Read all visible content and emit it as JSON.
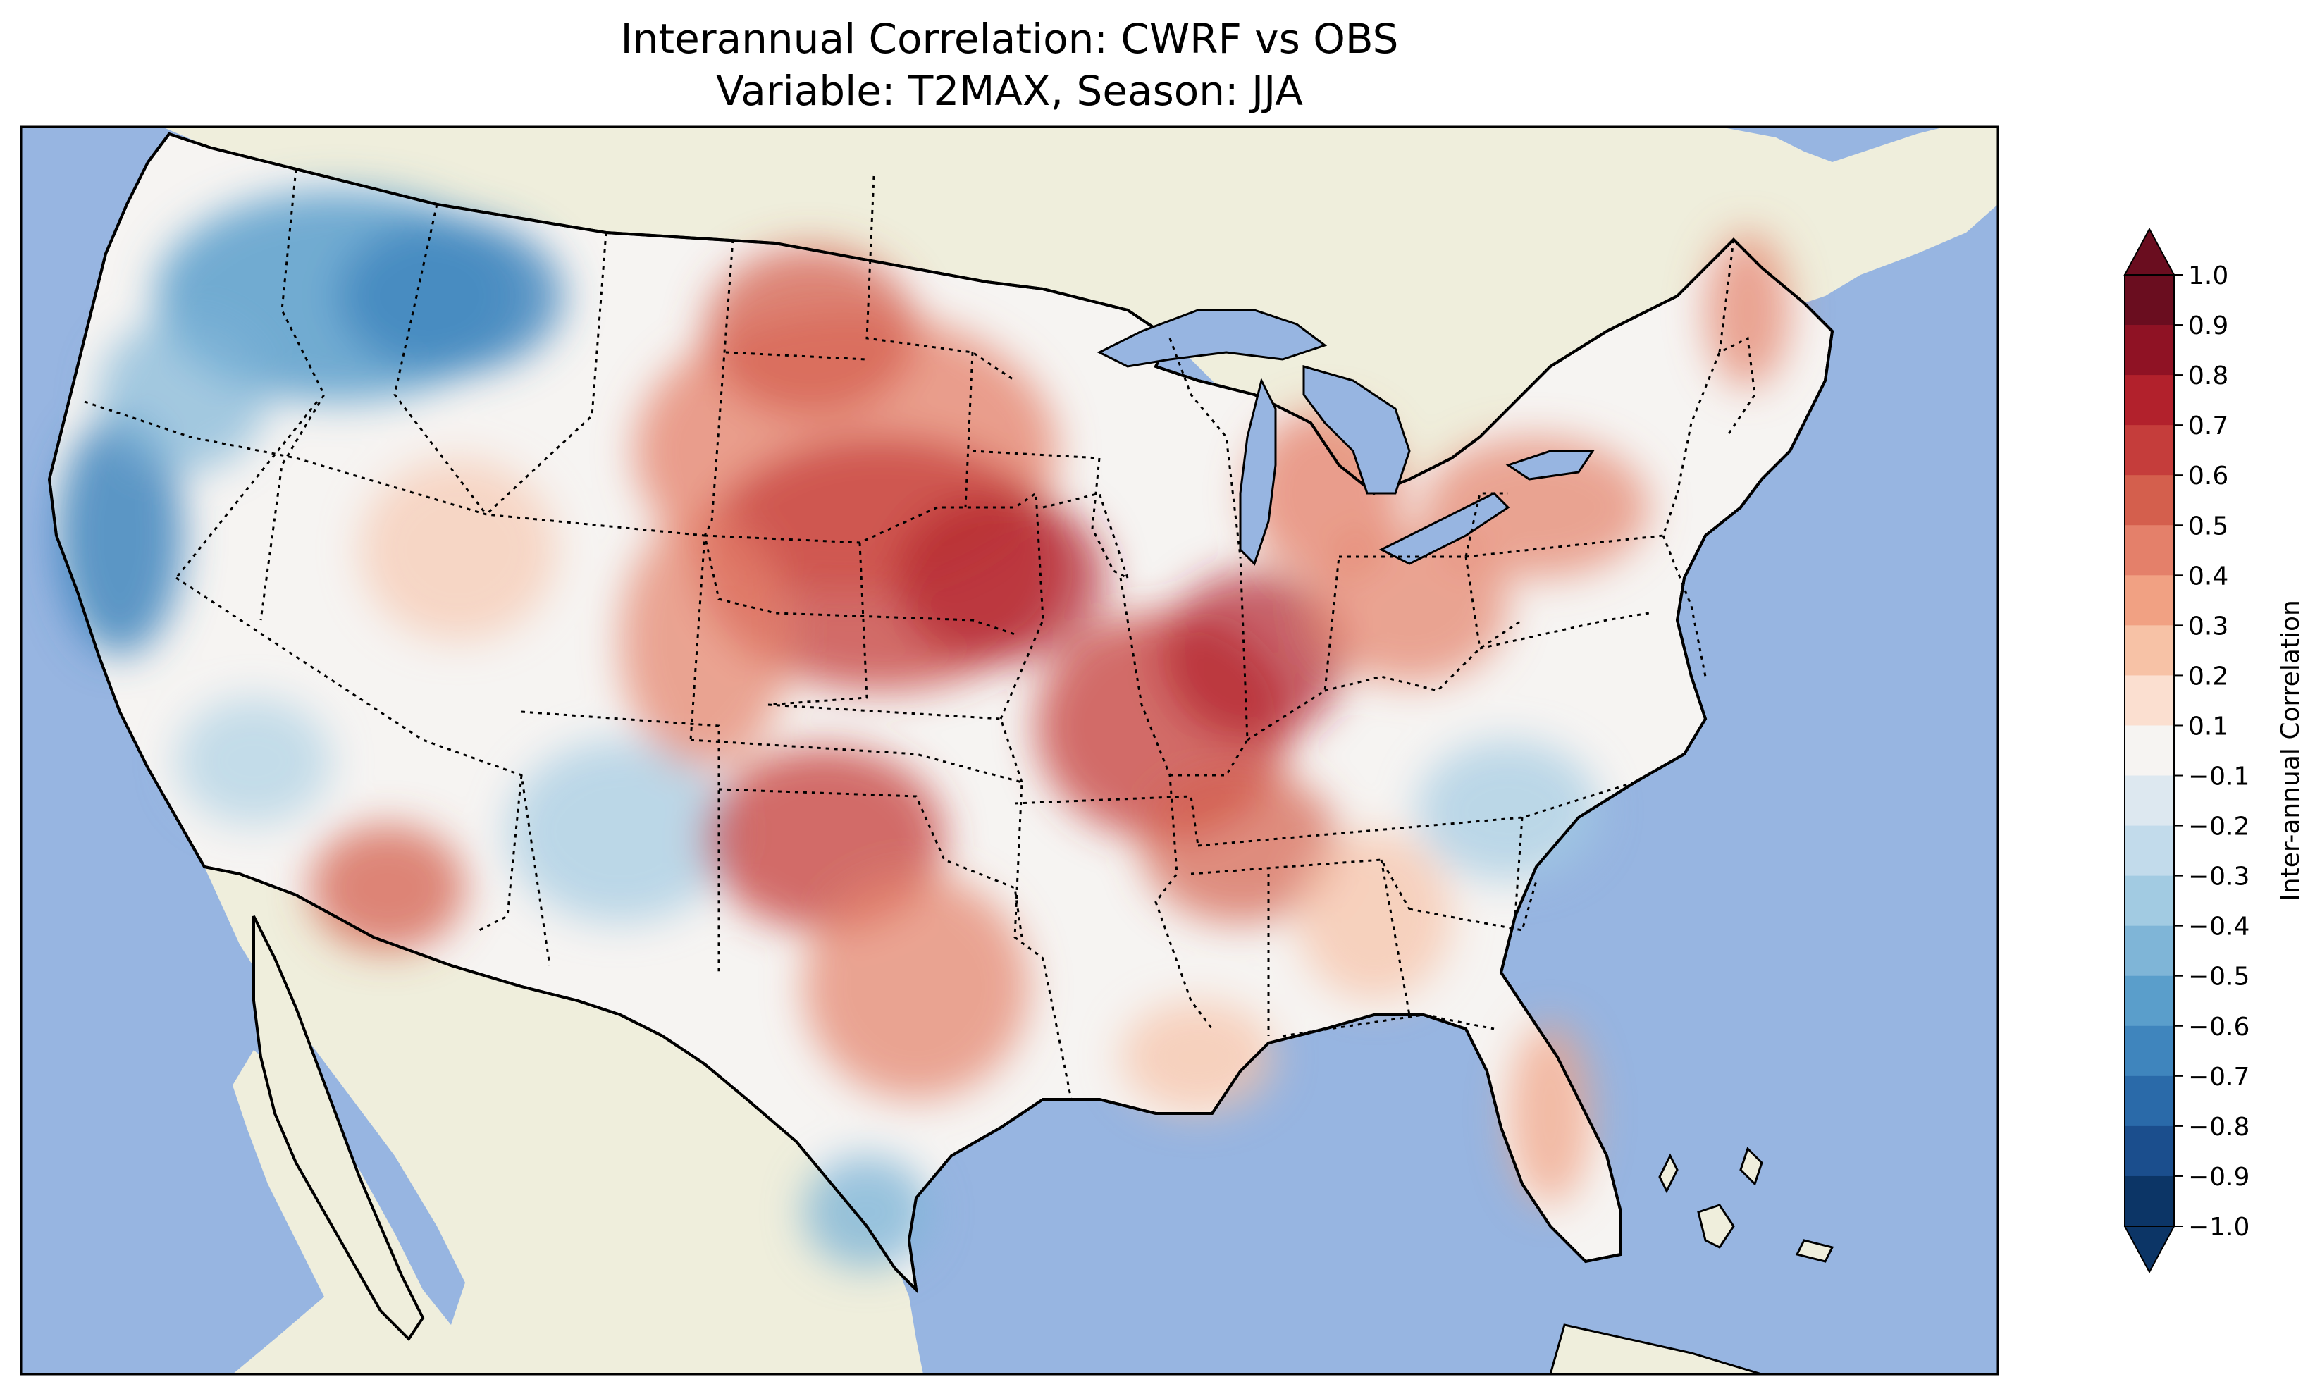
{
  "title": {
    "line1": "Interannual Correlation: CWRF vs OBS",
    "line2": "Variable: T2MAX, Season: JJA"
  },
  "colorbar": {
    "label": "Inter-annual Correlation",
    "ticks": [
      "1.0",
      "0.9",
      "0.8",
      "0.7",
      "0.6",
      "0.5",
      "0.4",
      "0.3",
      "0.2",
      "0.1",
      "−0.1",
      "−0.2",
      "−0.3",
      "−0.4",
      "−0.5",
      "−0.6",
      "−0.7",
      "−0.8",
      "−0.9",
      "−1.0"
    ],
    "colors": [
      "#6a0d1f",
      "#8f1224",
      "#b2212c",
      "#c53d3b",
      "#d45f4d",
      "#e4806a",
      "#f1a183",
      "#f7c2a6",
      "#fbdfd0",
      "#f6f4f2",
      "#dde8f0",
      "#c2dbeb",
      "#a2cbe2",
      "#7fb5d7",
      "#5a9ecb",
      "#3f85bd",
      "#2a6aa9",
      "#1b4e8d",
      "#0c3566"
    ],
    "range": [
      -1.0,
      1.0
    ]
  },
  "map": {
    "ocean_color": "#97b5e1",
    "land_color": "#efeedc",
    "region": "Contiguous United States (CWRF domain)"
  }
}
